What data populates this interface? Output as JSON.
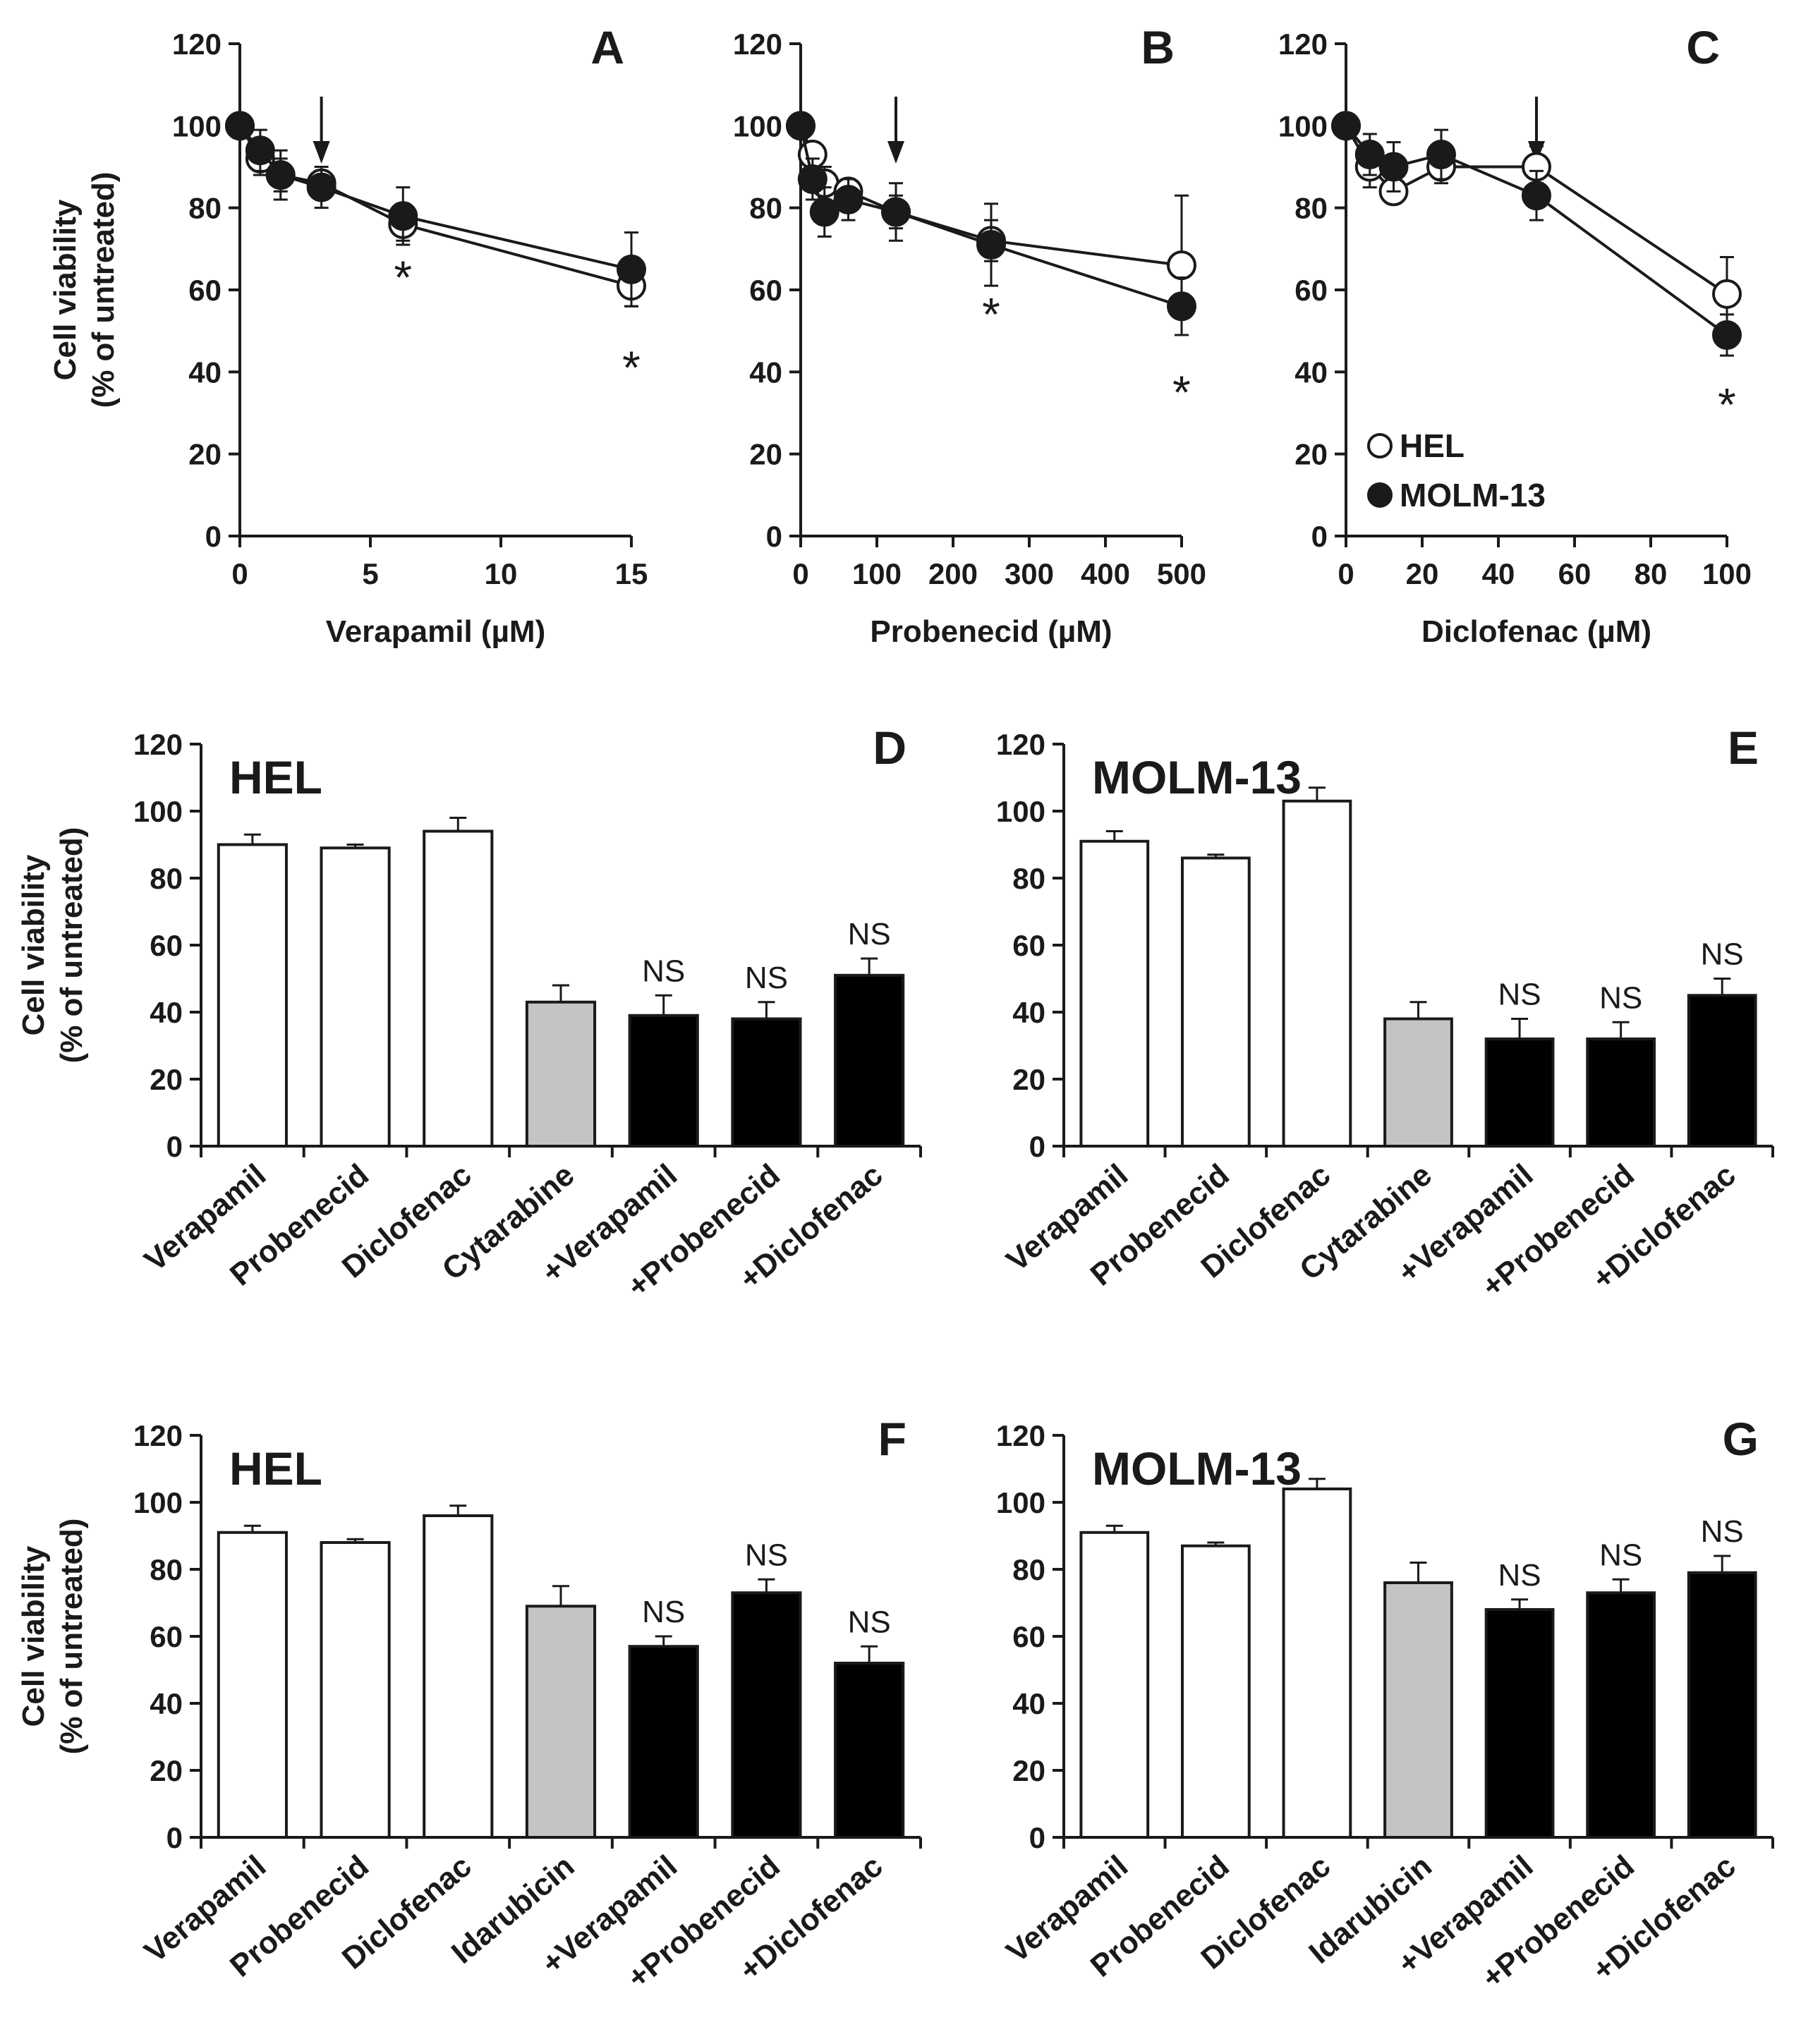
{
  "chart_data": [
    {
      "type": "line",
      "panel": "A",
      "title": "",
      "xlabel": "Verapamil (µM)",
      "ylabel_lines": [
        "Cell viability",
        "(% of untreated)"
      ],
      "xlim": [
        0,
        15
      ],
      "ylim": [
        0,
        120
      ],
      "xticks": [
        0,
        5,
        10,
        15
      ],
      "yticks": [
        0,
        20,
        40,
        60,
        80,
        100,
        120
      ],
      "grid": false,
      "arrow_x": 3.125,
      "series": [
        {
          "name": "HEL",
          "marker": "open",
          "x": [
            0,
            0.78,
            1.56,
            3.125,
            6.25,
            15
          ],
          "y": [
            100,
            92,
            88,
            86,
            76,
            61
          ],
          "err": [
            0,
            4,
            4,
            3,
            4,
            5
          ]
        },
        {
          "name": "MOLM-13",
          "marker": "filled",
          "x": [
            0,
            0.78,
            1.56,
            3.125,
            6.25,
            15
          ],
          "y": [
            100,
            94,
            88,
            85,
            78,
            65
          ],
          "err": [
            0,
            5,
            6,
            5,
            7,
            9
          ]
        }
      ],
      "annotations": [
        {
          "x": 6.25,
          "y": 66,
          "text": "*"
        },
        {
          "x": 15,
          "y": 44,
          "text": "*"
        }
      ]
    },
    {
      "type": "line",
      "panel": "B",
      "title": "",
      "xlabel": "Probenecid (µM)",
      "xlim": [
        0,
        500
      ],
      "ylim": [
        0,
        120
      ],
      "xticks": [
        0,
        100,
        200,
        300,
        400,
        500
      ],
      "yticks": [
        0,
        20,
        40,
        60,
        80,
        100,
        120
      ],
      "grid": false,
      "arrow_x": 125,
      "series": [
        {
          "name": "HEL",
          "marker": "open",
          "x": [
            0,
            15.6,
            31.25,
            62.5,
            125,
            250,
            500
          ],
          "y": [
            100,
            93,
            86,
            84,
            79,
            72,
            66
          ],
          "err": [
            0,
            3,
            4,
            3,
            4,
            5,
            17
          ]
        },
        {
          "name": "MOLM-13",
          "marker": "filled",
          "x": [
            0,
            15.6,
            31.25,
            62.5,
            125,
            250,
            500
          ],
          "y": [
            100,
            87,
            79,
            82,
            79,
            71,
            56
          ],
          "err": [
            0,
            5,
            6,
            5,
            7,
            10,
            7
          ]
        }
      ],
      "annotations": [
        {
          "x": 250,
          "y": 57,
          "text": "*"
        },
        {
          "x": 500,
          "y": 38,
          "text": "*"
        }
      ]
    },
    {
      "type": "line",
      "panel": "C",
      "title": "",
      "xlabel": "Diclofenac (µM)",
      "xlim": [
        0,
        100
      ],
      "ylim": [
        0,
        120
      ],
      "xticks": [
        0,
        20,
        40,
        60,
        80,
        100
      ],
      "yticks": [
        0,
        20,
        40,
        60,
        80,
        100,
        120
      ],
      "grid": false,
      "arrow_x": 50,
      "legend": {
        "position": "bottom-left",
        "entries": [
          "HEL",
          "MOLM-13"
        ]
      },
      "series": [
        {
          "name": "HEL",
          "marker": "open",
          "x": [
            0,
            6.25,
            12.5,
            25,
            50,
            100
          ],
          "y": [
            100,
            90,
            84,
            90,
            90,
            59
          ],
          "err": [
            0,
            5,
            3,
            4,
            5,
            9
          ]
        },
        {
          "name": "MOLM-13",
          "marker": "filled",
          "x": [
            0,
            6.25,
            12.5,
            25,
            50,
            100
          ],
          "y": [
            100,
            93,
            90,
            93,
            83,
            49
          ],
          "err": [
            0,
            5,
            6,
            6,
            6,
            5
          ]
        }
      ],
      "annotations": [
        {
          "x": 100,
          "y": 35,
          "text": "*"
        }
      ]
    },
    {
      "type": "bar",
      "panel": "D",
      "title": "HEL",
      "ylabel_lines": [
        "Cell viability",
        "(% of untreated)"
      ],
      "ylim": [
        0,
        120
      ],
      "yticks": [
        0,
        20,
        40,
        60,
        80,
        100,
        120
      ],
      "categories": [
        "Verapamil",
        "Probenecid",
        "Diclofenac",
        "Cytarabine",
        "+Verapamil",
        "+Probenecid",
        "+Diclofenac"
      ],
      "values": [
        90,
        89,
        94,
        43,
        39,
        38,
        51
      ],
      "errors": [
        3,
        1,
        4,
        5,
        6,
        5,
        5
      ],
      "fills": [
        "white",
        "white",
        "white",
        "gray",
        "black",
        "black",
        "black"
      ],
      "labels": [
        "",
        "",
        "",
        "",
        "NS",
        "NS",
        "NS"
      ]
    },
    {
      "type": "bar",
      "panel": "E",
      "title": "MOLM-13",
      "ylim": [
        0,
        120
      ],
      "yticks": [
        0,
        20,
        40,
        60,
        80,
        100,
        120
      ],
      "categories": [
        "Verapamil",
        "Probenecid",
        "Diclofenac",
        "Cytarabine",
        "+Verapamil",
        "+Probenecid",
        "+Diclofenac"
      ],
      "values": [
        91,
        86,
        103,
        38,
        32,
        32,
        45
      ],
      "errors": [
        3,
        1,
        4,
        5,
        6,
        5,
        5
      ],
      "fills": [
        "white",
        "white",
        "white",
        "gray",
        "black",
        "black",
        "black"
      ],
      "labels": [
        "",
        "",
        "",
        "",
        "NS",
        "NS",
        "NS"
      ]
    },
    {
      "type": "bar",
      "panel": "F",
      "title": "HEL",
      "ylabel_lines": [
        "Cell viability",
        "(% of untreated)"
      ],
      "ylim": [
        0,
        120
      ],
      "yticks": [
        0,
        20,
        40,
        60,
        80,
        100,
        120
      ],
      "categories": [
        "Verapamil",
        "Probenecid",
        "Diclofenac",
        "Idarubicin",
        "+Verapamil",
        "+Probenecid",
        "+Diclofenac"
      ],
      "values": [
        91,
        88,
        96,
        69,
        57,
        73,
        52
      ],
      "errors": [
        2,
        1,
        3,
        6,
        3,
        4,
        5
      ],
      "fills": [
        "white",
        "white",
        "white",
        "gray",
        "black",
        "black",
        "black"
      ],
      "labels": [
        "",
        "",
        "",
        "",
        "NS",
        "NS",
        "NS"
      ]
    },
    {
      "type": "bar",
      "panel": "G",
      "title": "MOLM-13",
      "ylim": [
        0,
        120
      ],
      "yticks": [
        0,
        20,
        40,
        60,
        80,
        100,
        120
      ],
      "categories": [
        "Verapamil",
        "Probenecid",
        "Diclofenac",
        "Idarubicin",
        "+Verapamil",
        "+Probenecid",
        "+Diclofenac"
      ],
      "values": [
        91,
        87,
        104,
        76,
        68,
        73,
        79
      ],
      "errors": [
        2,
        1,
        3,
        6,
        3,
        4,
        5
      ],
      "fills": [
        "white",
        "white",
        "white",
        "gray",
        "black",
        "black",
        "black"
      ],
      "labels": [
        "",
        "",
        "",
        "",
        "NS",
        "NS",
        "NS"
      ]
    }
  ]
}
